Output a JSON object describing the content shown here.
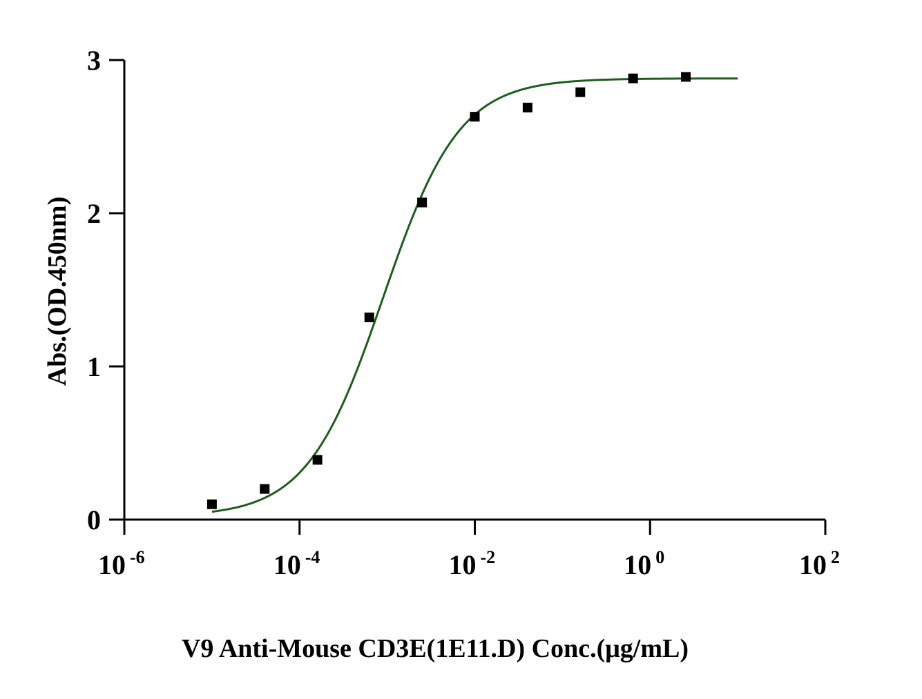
{
  "chart_data": {
    "type": "scatter",
    "title": "",
    "xlabel": "V9 Anti-Mouse CD3E(1E11.D) Conc.(μg/mL)",
    "ylabel": "Abs.(OD.450nm)",
    "x_scale": "log10",
    "xlim": [
      1e-06,
      100
    ],
    "ylim": [
      0,
      3
    ],
    "grid": false,
    "legend": "none",
    "x_ticks": [
      {
        "value": 1e-06,
        "base": "10",
        "exp": "-6"
      },
      {
        "value": 0.0001,
        "base": "10",
        "exp": "-4"
      },
      {
        "value": 0.01,
        "base": "10",
        "exp": "-2"
      },
      {
        "value": 1,
        "base": "10",
        "exp": "0"
      },
      {
        "value": 100,
        "base": "10",
        "exp": "2"
      }
    ],
    "y_ticks": [
      {
        "value": 0,
        "label": "0"
      },
      {
        "value": 1,
        "label": "1"
      },
      {
        "value": 2,
        "label": "2"
      },
      {
        "value": 3,
        "label": "3"
      }
    ],
    "series": [
      {
        "marker": "square",
        "color": "#000000",
        "x": [
          1e-05,
          4e-05,
          0.00016,
          0.000625,
          0.0025,
          0.01,
          0.04,
          0.16,
          0.64,
          2.56
        ],
        "y": [
          0.1,
          0.2,
          0.39,
          1.32,
          2.07,
          2.63,
          2.69,
          2.79,
          2.88,
          2.89
        ]
      }
    ],
    "fit": {
      "model": "4PL",
      "color": "#1e5c1e",
      "bottom": 0.02,
      "top": 2.88,
      "ec50": 0.0009,
      "hill": 1.0,
      "x_range": [
        1e-05,
        10
      ]
    }
  }
}
